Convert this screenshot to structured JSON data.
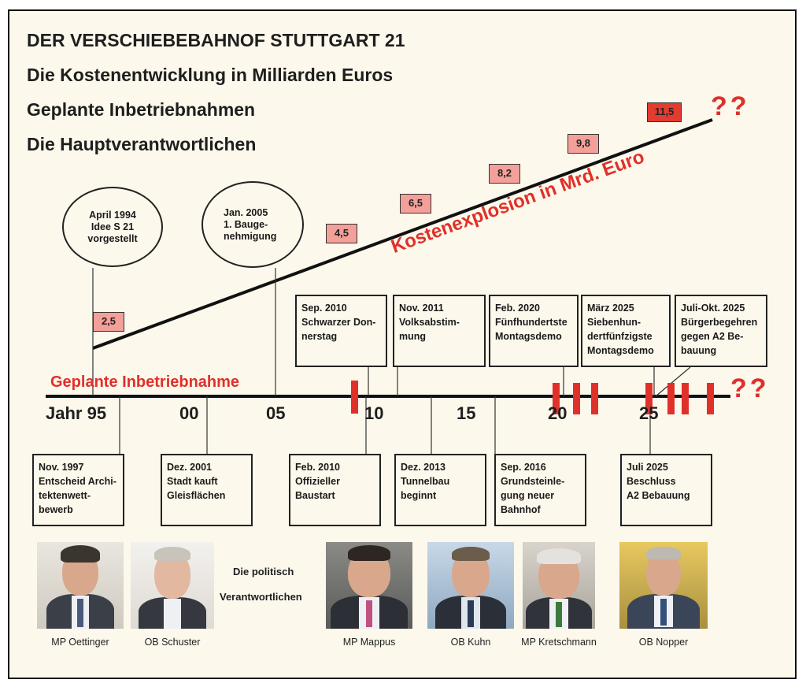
{
  "titles": [
    "DER VERSCHIEBEBAHNOF STUTTGART 21",
    "Die Kostenentwicklung in Milliarden Euros",
    "Geplante Inbetriebnahmen",
    "Die Hauptverantwortlichen"
  ],
  "cost_label": "Kostenexplosion in Mrd. Euro",
  "timeline_label": "Geplante Inbetriebnahme",
  "question_marks": "??",
  "ovals": [
    {
      "lines": [
        "April 1994",
        "Idee S 21",
        "vorgestellt"
      ]
    },
    {
      "lines": [
        "Jan. 2005",
        "1. Bauge-",
        "nehmigung"
      ]
    }
  ],
  "costs": [
    "2,5",
    "4,5",
    "6,5",
    "8,2",
    "9,8",
    "11,5"
  ],
  "year_labels": [
    "Jahr 95",
    "00",
    "05",
    "10",
    "15",
    "20",
    "25"
  ],
  "upper_events": [
    {
      "lines": [
        "Sep. 2010",
        "Schwarzer Don-",
        "nerstag"
      ]
    },
    {
      "lines": [
        "Nov. 2011",
        "Volksabstim-",
        "mung"
      ]
    },
    {
      "lines": [
        "Feb. 2020",
        "Fünfhundertste",
        "Montagsdemo"
      ]
    },
    {
      "lines": [
        "März 2025",
        "Siebenhun-",
        "dertfünfzigste",
        "Montagsdemo"
      ]
    },
    {
      "lines": [
        "Juli-Okt. 2025",
        "Bürgerbegehren",
        "gegen A2 Be-",
        "bauung"
      ]
    }
  ],
  "lower_events": [
    {
      "lines": [
        "Nov. 1997",
        "Entscheid Archi-",
        "tektenwett-",
        "bewerb"
      ]
    },
    {
      "lines": [
        "Dez. 2001",
        "Stadt kauft",
        "Gleisflächen"
      ]
    },
    {
      "lines": [
        "Feb. 2010",
        "Offizieller",
        "Baustart"
      ]
    },
    {
      "lines": [
        "Dez. 2013",
        "Tunnelbau",
        "beginnt"
      ]
    },
    {
      "lines": [
        "Sep. 2016",
        "Grundsteinle-",
        "gung neuer",
        "Bahnhof"
      ]
    },
    {
      "lines": [
        "Juli 2025",
        "Beschluss",
        "A2 Bebauung"
      ]
    }
  ],
  "politicians_label": [
    "Die politisch",
    "Verantwortlichen"
  ],
  "people": [
    "MP Oettinger",
    "OB Schuster",
    "MP Mappus",
    "OB Kuhn",
    "MP Kretschmann",
    "OB Nopper"
  ],
  "colors": {
    "accent_red": "#e0302a",
    "cost_box": "#f4a09a",
    "cost_box_high": "#e23b30",
    "background": "#fdf8ec"
  }
}
